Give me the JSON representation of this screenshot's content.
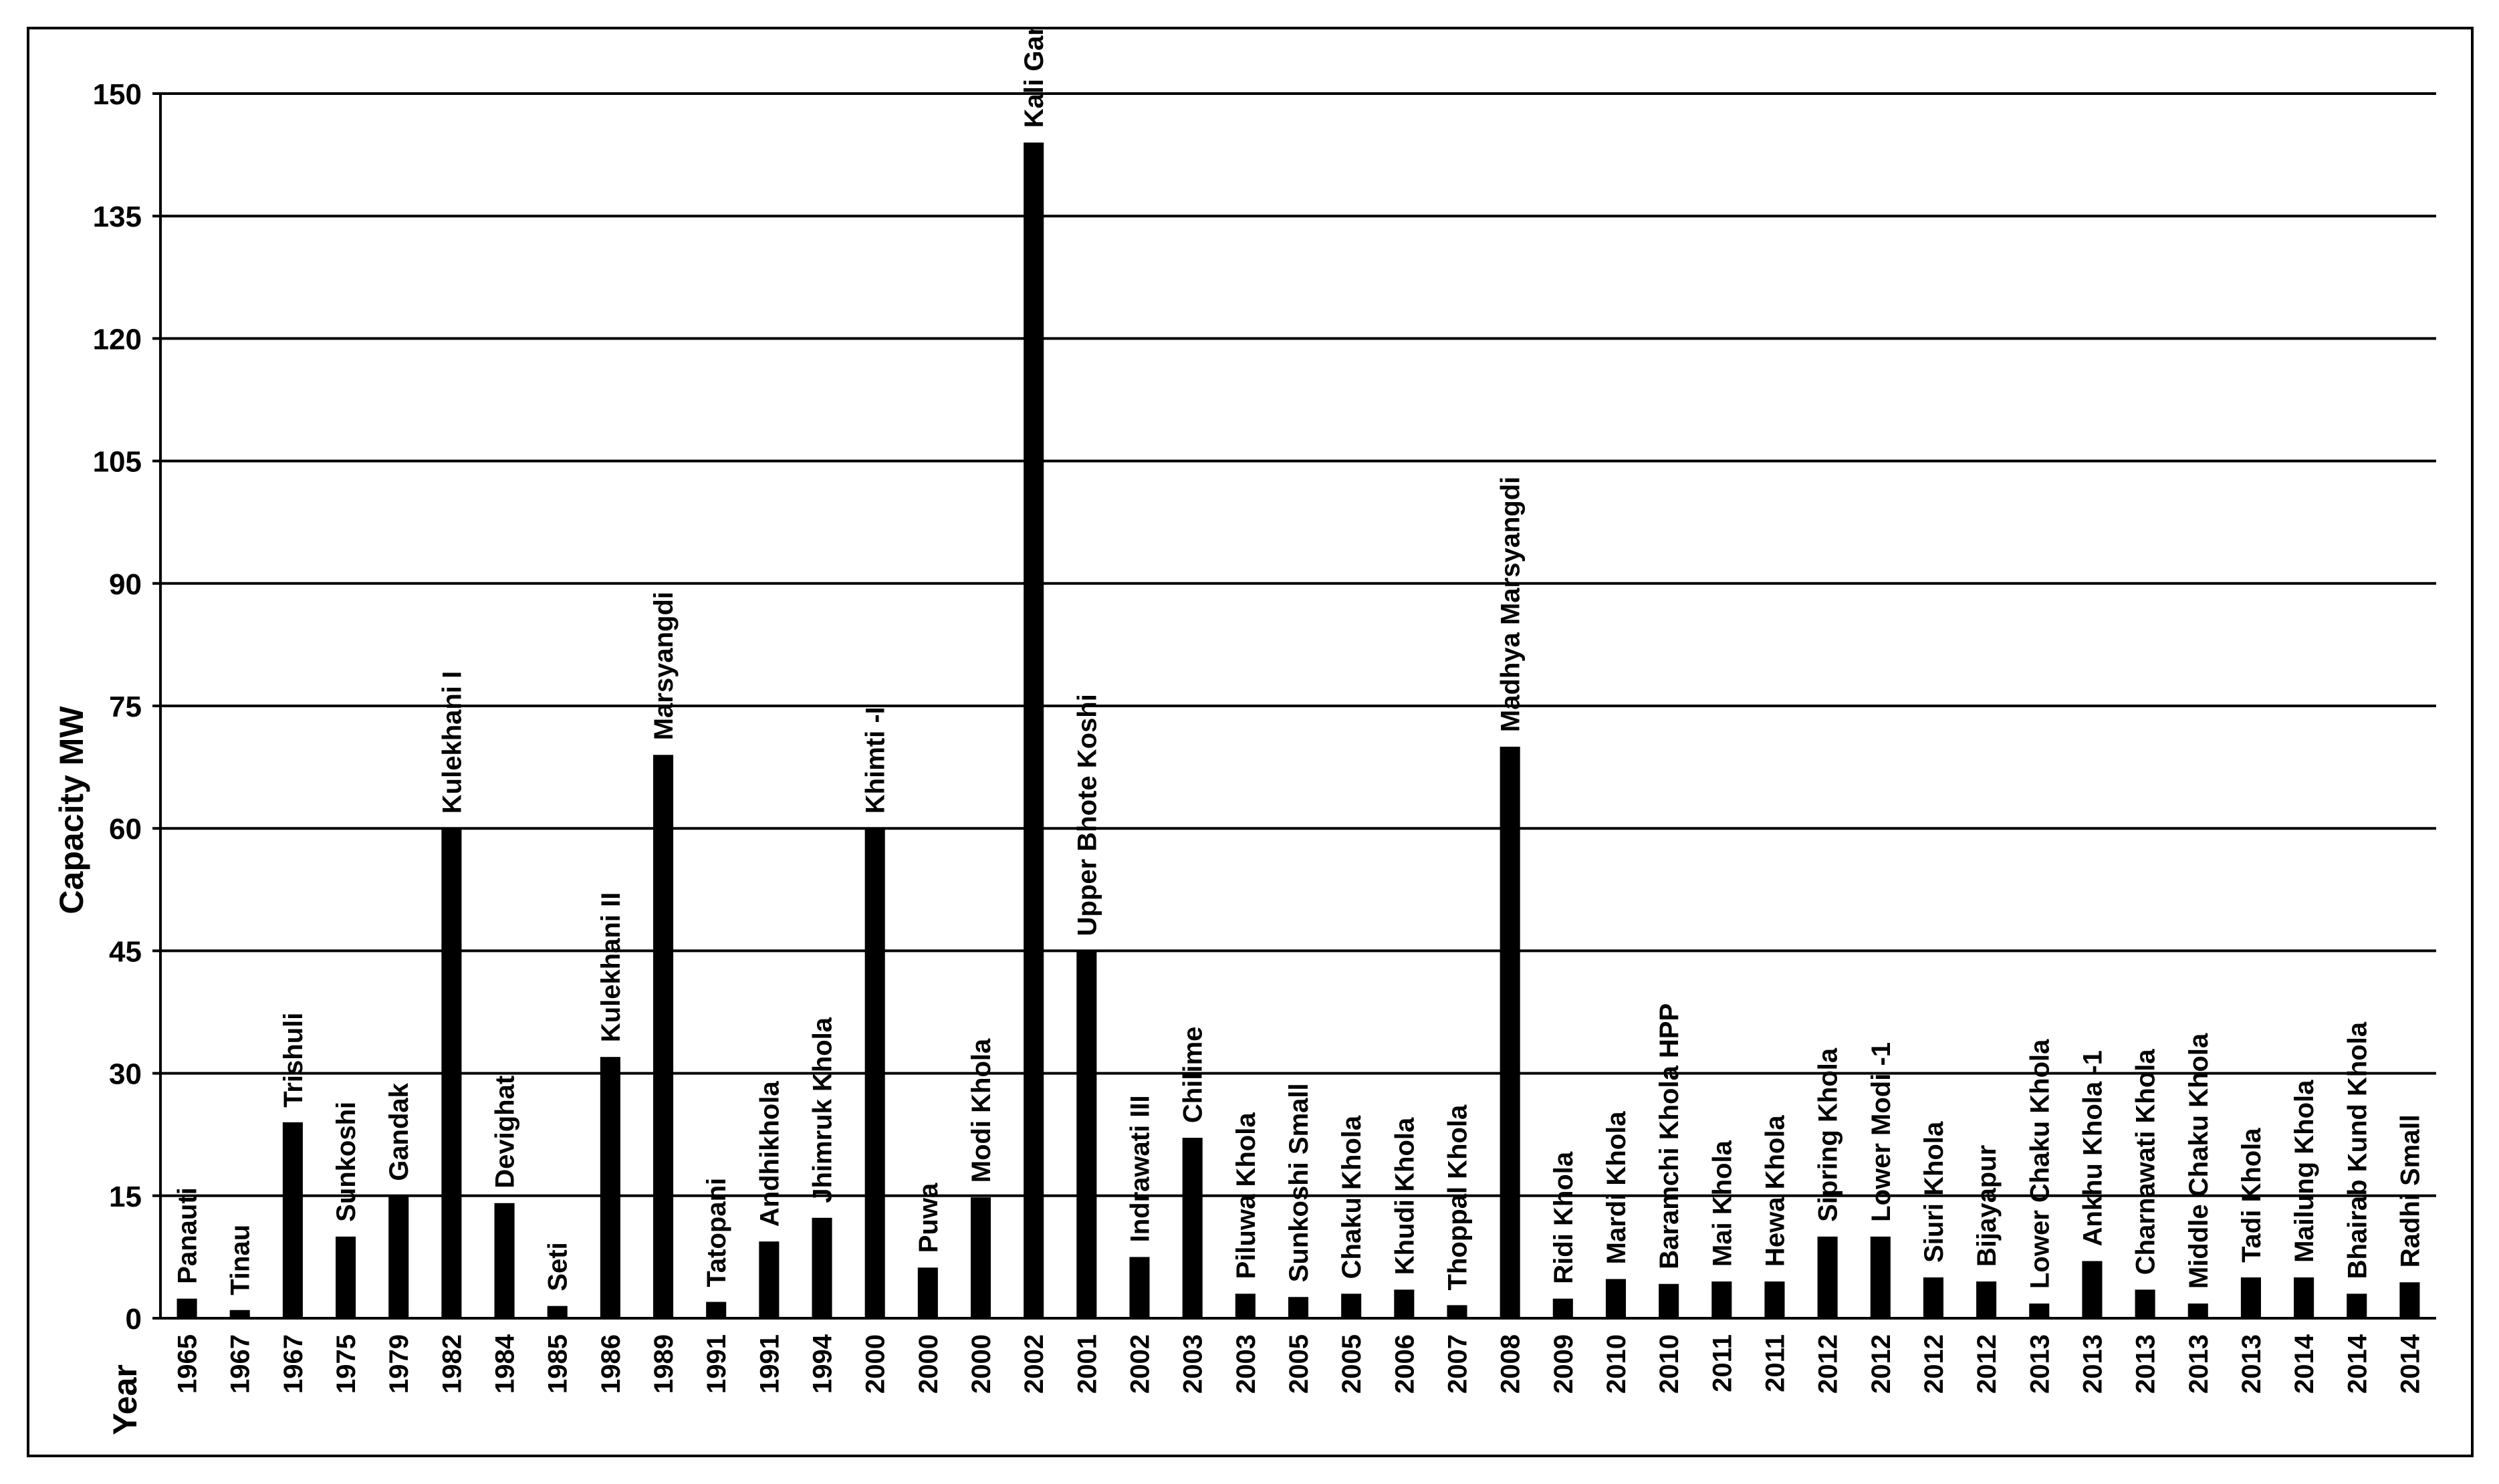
{
  "chart_data": {
    "type": "bar",
    "ylabel": "Capacity MW",
    "xlabel": "Year",
    "ylim": [
      0,
      150
    ],
    "yticks": [
      0,
      15,
      30,
      45,
      60,
      75,
      90,
      105,
      120,
      135,
      150
    ],
    "grid": true,
    "bar_color": "#000000",
    "categories": [
      {
        "name": "Panauti",
        "year": "1965",
        "value": 2.4
      },
      {
        "name": "Tinau",
        "year": "1967",
        "value": 1
      },
      {
        "name": "Trishuli",
        "year": "1967",
        "value": 24
      },
      {
        "name": "Sunkoshi",
        "year": "1975",
        "value": 10
      },
      {
        "name": "Gandak",
        "year": "1979",
        "value": 15
      },
      {
        "name": "Kulekhani I",
        "year": "1982",
        "value": 60
      },
      {
        "name": "Devighat",
        "year": "1984",
        "value": 14.1
      },
      {
        "name": "Seti",
        "year": "1985",
        "value": 1.5
      },
      {
        "name": "Kulekhani II",
        "year": "1986",
        "value": 32
      },
      {
        "name": "Marsyangdi",
        "year": "1989",
        "value": 69
      },
      {
        "name": "Tatopani",
        "year": "1991",
        "value": 2
      },
      {
        "name": "Andhikhola",
        "year": "1991",
        "value": 9.4
      },
      {
        "name": "Jhimruk Khola",
        "year": "1994",
        "value": 12.3
      },
      {
        "name": "Khimti -I",
        "year": "2000",
        "value": 60
      },
      {
        "name": "Puwa",
        "year": "2000",
        "value": 6.2
      },
      {
        "name": "Modi Khola",
        "year": "2000",
        "value": 14.8
      },
      {
        "name": "Kali Gandaki A",
        "year": "2002",
        "value": 144
      },
      {
        "name": "Upper Bhote Koshi",
        "year": "2001",
        "value": 45
      },
      {
        "name": "Indrawati III",
        "year": "2002",
        "value": 7.5
      },
      {
        "name": "Chilime",
        "year": "2003",
        "value": 22.1
      },
      {
        "name": "Piluwa Khola",
        "year": "2003",
        "value": 3
      },
      {
        "name": "Sunkoshi Small",
        "year": "2005",
        "value": 2.6
      },
      {
        "name": "Chaku Khola",
        "year": "2005",
        "value": 3
      },
      {
        "name": "Khudi Khola",
        "year": "2006",
        "value": 3.5
      },
      {
        "name": "Thoppal Khola",
        "year": "2007",
        "value": 1.6
      },
      {
        "name": "Madhya Marsyangdi",
        "year": "2008",
        "value": 70
      },
      {
        "name": "Ridi Khola",
        "year": "2009",
        "value": 2.4
      },
      {
        "name": "Mardi Khola",
        "year": "2010",
        "value": 4.8
      },
      {
        "name": "Baramchi Khola HPP",
        "year": "2010",
        "value": 4.2
      },
      {
        "name": "Mai Khola",
        "year": "2011",
        "value": 4.5
      },
      {
        "name": "Hewa Khola",
        "year": "2011",
        "value": 4.5
      },
      {
        "name": "Sipring Khola",
        "year": "2012",
        "value": 10
      },
      {
        "name": "Lower Modi -1",
        "year": "2012",
        "value": 10
      },
      {
        "name": "Siuri Khola",
        "year": "2012",
        "value": 5
      },
      {
        "name": "Bijayapur",
        "year": "2012",
        "value": 4.5
      },
      {
        "name": "Lower Chaku Khola",
        "year": "2013",
        "value": 1.8
      },
      {
        "name": "Ankhu Khola -1",
        "year": "2013",
        "value": 7
      },
      {
        "name": "Charnawati Khola",
        "year": "2013",
        "value": 3.5
      },
      {
        "name": "Middle Chaku Khola",
        "year": "2013",
        "value": 1.8
      },
      {
        "name": "Tadi Khola",
        "year": "2013",
        "value": 5
      },
      {
        "name": "Mailung Khola",
        "year": "2014",
        "value": 5
      },
      {
        "name": "Bhairab Kund Khola",
        "year": "2014",
        "value": 3
      },
      {
        "name": "Radhi Small",
        "year": "2014",
        "value": 4.4
      }
    ]
  }
}
